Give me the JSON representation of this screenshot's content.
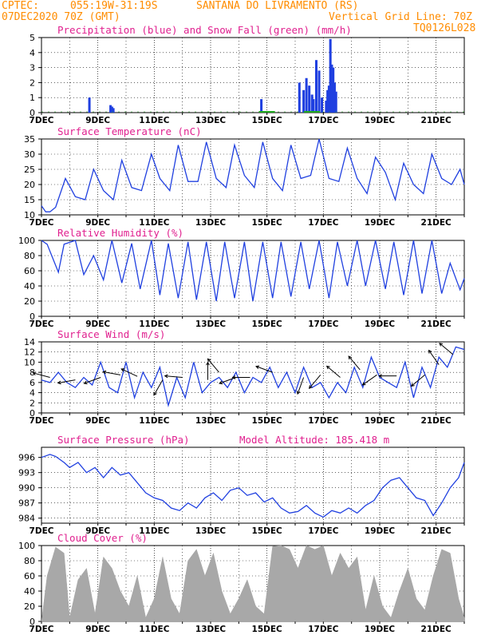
{
  "header": {
    "source": "CPTEC:",
    "coords": "055:19W-31:19S",
    "location": "SANTANA DO LIVRAMENTO (RS)",
    "run": "07DEC2020 70Z (GMT)",
    "grid_note": "Vertical Grid Line: 70Z",
    "code": "TQ0126L028",
    "colors": {
      "orange": "#ff8c00",
      "magenta": "#e0208f",
      "line": "#2040e0",
      "bar": "#1f3fe0",
      "cloud": "#a8a8a8"
    }
  },
  "x_axis": {
    "ticks": [
      "7DEC",
      "9DEC",
      "11DEC",
      "13DEC",
      "15DEC",
      "17DEC",
      "19DEC",
      "21DEC"
    ],
    "tick_days": [
      0,
      2,
      4,
      6,
      8,
      10,
      12,
      14
    ],
    "days": 15
  },
  "chart_data": [
    {
      "id": "precip",
      "type": "bar",
      "title": "Precipitation (blue) and Snow Fall (green) (mm/h)",
      "ylim": [
        0,
        5
      ],
      "yticks": [
        0,
        1,
        2,
        3,
        4,
        5
      ],
      "series": [
        {
          "name": "precipitation",
          "x": [
            1.7,
            2.45,
            2.5,
            2.55,
            7.8,
            9.15,
            9.3,
            9.4,
            9.5,
            9.6,
            9.65,
            9.75,
            9.85,
            9.95,
            10.1,
            10.15,
            10.2,
            10.25,
            10.3,
            10.35,
            10.4,
            10.45
          ],
          "values": [
            1.0,
            0.5,
            0.4,
            0.3,
            0.9,
            2.0,
            1.5,
            2.3,
            1.8,
            1.2,
            0.9,
            3.5,
            2.8,
            1.0,
            0.8,
            1.5,
            1.8,
            4.9,
            3.2,
            3.0,
            2.0,
            1.4
          ]
        },
        {
          "name": "snowfall",
          "x": [
            8.0,
            9.6
          ],
          "values": [
            0.05,
            0.05
          ]
        }
      ]
    },
    {
      "id": "temp",
      "type": "line",
      "title": "Surface Temperature (nC)",
      "ylim": [
        10,
        35
      ],
      "yticks": [
        10,
        15,
        20,
        25,
        30,
        35
      ],
      "x": [
        0,
        0.15,
        0.3,
        0.5,
        0.85,
        1.2,
        1.55,
        1.85,
        2.2,
        2.55,
        2.85,
        3.2,
        3.55,
        3.9,
        4.2,
        4.55,
        4.85,
        5.2,
        5.55,
        5.85,
        6.2,
        6.55,
        6.85,
        7.2,
        7.55,
        7.85,
        8.2,
        8.55,
        8.85,
        9.2,
        9.55,
        9.85,
        10.2,
        10.55,
        10.85,
        11.2,
        11.55,
        11.85,
        12.2,
        12.55,
        12.85,
        13.2,
        13.55,
        13.85,
        14.2,
        14.55,
        14.85,
        15.0
      ],
      "values": [
        13,
        11,
        11,
        12.5,
        22,
        16,
        15,
        25,
        18,
        15,
        28,
        19,
        18,
        30,
        22,
        18,
        33,
        21,
        21,
        34,
        22,
        19,
        33,
        23,
        19,
        34,
        22,
        18,
        33,
        22,
        23,
        35,
        22,
        21,
        32,
        22,
        17,
        29,
        24,
        15,
        27,
        20,
        17,
        30,
        22,
        20,
        25,
        20
      ]
    },
    {
      "id": "rh",
      "type": "line",
      "title": "Relative Humidity (%)",
      "ylim": [
        0,
        100
      ],
      "yticks": [
        0,
        20,
        40,
        60,
        80,
        100
      ],
      "x": [
        0,
        0.2,
        0.6,
        0.8,
        1.2,
        1.5,
        1.85,
        2.2,
        2.5,
        2.85,
        3.2,
        3.5,
        3.9,
        4.2,
        4.5,
        4.85,
        5.2,
        5.5,
        5.85,
        6.2,
        6.5,
        6.85,
        7.2,
        7.5,
        7.85,
        8.2,
        8.5,
        8.85,
        9.2,
        9.5,
        9.85,
        10.2,
        10.5,
        10.85,
        11.2,
        11.5,
        11.85,
        12.2,
        12.5,
        12.85,
        13.2,
        13.5,
        13.85,
        14.2,
        14.5,
        14.85,
        15.0
      ],
      "values": [
        100,
        95,
        58,
        95,
        100,
        55,
        80,
        48,
        100,
        44,
        96,
        36,
        100,
        28,
        96,
        24,
        98,
        22,
        98,
        20,
        98,
        24,
        98,
        20,
        98,
        24,
        98,
        26,
        98,
        36,
        100,
        24,
        98,
        40,
        100,
        40,
        100,
        36,
        98,
        28,
        100,
        30,
        100,
        30,
        70,
        35,
        50
      ]
    },
    {
      "id": "wind",
      "type": "line",
      "title": "Surface Wind (m/s)",
      "ylim": [
        0,
        14
      ],
      "yticks": [
        0,
        2,
        4,
        6,
        8,
        10,
        12,
        14
      ],
      "x": [
        0,
        0.3,
        0.6,
        0.9,
        1.2,
        1.5,
        1.8,
        2.1,
        2.4,
        2.7,
        3.0,
        3.3,
        3.6,
        3.9,
        4.2,
        4.5,
        4.8,
        5.1,
        5.4,
        5.7,
        6.0,
        6.3,
        6.6,
        6.9,
        7.2,
        7.5,
        7.8,
        8.1,
        8.4,
        8.7,
        9.0,
        9.3,
        9.6,
        9.9,
        10.2,
        10.5,
        10.8,
        11.1,
        11.4,
        11.7,
        12.0,
        12.3,
        12.6,
        12.9,
        13.2,
        13.5,
        13.8,
        14.1,
        14.4,
        14.7,
        15.0
      ],
      "values": [
        6.5,
        6,
        8,
        6,
        5,
        7,
        5.5,
        10,
        5,
        4,
        10,
        3,
        8,
        5,
        9,
        1.5,
        7,
        3,
        10,
        4,
        6,
        7,
        5,
        8,
        4,
        7,
        6,
        9,
        5,
        8,
        4,
        9,
        5,
        6,
        3,
        6,
        4,
        9,
        5,
        11,
        7,
        6,
        5,
        10,
        3,
        9,
        5,
        11,
        9,
        13,
        12.5
      ],
      "arrows": [
        {
          "day": 0.3,
          "speed": 7,
          "dir_deg": 165
        },
        {
          "day": 1.2,
          "speed": 6.5,
          "dir_deg": 190
        },
        {
          "day": 2.1,
          "speed": 7,
          "dir_deg": 200
        },
        {
          "day": 2.8,
          "speed": 7.5,
          "dir_deg": 170
        },
        {
          "day": 3.4,
          "speed": 7.2,
          "dir_deg": 155
        },
        {
          "day": 4.3,
          "speed": 6.5,
          "dir_deg": 240
        },
        {
          "day": 5.0,
          "speed": 7,
          "dir_deg": 175
        },
        {
          "day": 5.9,
          "speed": 6.5,
          "dir_deg": 90
        },
        {
          "day": 6.3,
          "speed": 8,
          "dir_deg": 130
        },
        {
          "day": 6.9,
          "speed": 7,
          "dir_deg": 200
        },
        {
          "day": 7.4,
          "speed": 7,
          "dir_deg": 180
        },
        {
          "day": 8.2,
          "speed": 8,
          "dir_deg": 160
        },
        {
          "day": 9.3,
          "speed": 7,
          "dir_deg": 250
        },
        {
          "day": 9.9,
          "speed": 7.5,
          "dir_deg": 230
        },
        {
          "day": 10.6,
          "speed": 7,
          "dir_deg": 140
        },
        {
          "day": 11.3,
          "speed": 8.5,
          "dir_deg": 130
        },
        {
          "day": 11.9,
          "speed": 7.5,
          "dir_deg": 215
        },
        {
          "day": 12.6,
          "speed": 7.3,
          "dir_deg": 180
        },
        {
          "day": 13.6,
          "speed": 7.5,
          "dir_deg": 220
        },
        {
          "day": 14.1,
          "speed": 9.5,
          "dir_deg": 125
        },
        {
          "day": 14.6,
          "speed": 11.5,
          "dir_deg": 140
        }
      ]
    },
    {
      "id": "pres",
      "type": "line",
      "title": "Surface Pressure (hPa)",
      "subtitle": "Model Altitude: 185.418 m",
      "ylim": [
        983,
        998
      ],
      "yticks": [
        984,
        987,
        990,
        993,
        996
      ],
      "x": [
        0,
        0.3,
        0.5,
        0.8,
        1.0,
        1.3,
        1.6,
        1.9,
        2.2,
        2.5,
        2.8,
        3.1,
        3.4,
        3.7,
        4.0,
        4.3,
        4.6,
        4.9,
        5.2,
        5.5,
        5.8,
        6.1,
        6.4,
        6.7,
        7.0,
        7.3,
        7.6,
        7.9,
        8.2,
        8.5,
        8.8,
        9.1,
        9.4,
        9.7,
        10.0,
        10.3,
        10.6,
        10.9,
        11.2,
        11.5,
        11.8,
        12.1,
        12.4,
        12.7,
        13.0,
        13.3,
        13.6,
        13.9,
        14.2,
        14.5,
        14.8,
        15.0
      ],
      "values": [
        996,
        996.6,
        996.2,
        995,
        994,
        995,
        993,
        994,
        992,
        994,
        992.5,
        993,
        991,
        989,
        988,
        987.5,
        986,
        985.5,
        987,
        986,
        988,
        989,
        987.5,
        989.5,
        990,
        988.5,
        989,
        987.2,
        988,
        986,
        985,
        985.3,
        986.5,
        985,
        984.2,
        985.5,
        985,
        986,
        985,
        986.5,
        987.5,
        990,
        991.5,
        992,
        990,
        988,
        987.5,
        984.5,
        987,
        990,
        992,
        995
      ]
    },
    {
      "id": "cloud",
      "type": "area",
      "title": "Cloud Cover (%)",
      "ylim": [
        0,
        100
      ],
      "yticks": [
        0,
        20,
        40,
        60,
        80,
        100
      ],
      "x": [
        0,
        0.2,
        0.5,
        0.8,
        1.0,
        1.3,
        1.6,
        1.9,
        2.2,
        2.5,
        2.8,
        3.1,
        3.4,
        3.7,
        4.0,
        4.3,
        4.6,
        4.9,
        5.2,
        5.5,
        5.8,
        6.1,
        6.4,
        6.7,
        7.0,
        7.3,
        7.6,
        7.9,
        8.2,
        8.5,
        8.8,
        9.1,
        9.4,
        9.7,
        10.0,
        10.3,
        10.6,
        10.9,
        11.2,
        11.5,
        11.8,
        12.1,
        12.4,
        12.7,
        13.0,
        13.3,
        13.6,
        13.9,
        14.2,
        14.5,
        14.8,
        15.0
      ],
      "values": [
        0,
        60,
        98,
        90,
        5,
        55,
        70,
        10,
        85,
        70,
        40,
        20,
        60,
        5,
        30,
        85,
        30,
        10,
        80,
        95,
        60,
        90,
        40,
        10,
        30,
        55,
        20,
        10,
        99,
        100,
        95,
        70,
        100,
        95,
        100,
        60,
        90,
        70,
        85,
        15,
        60,
        20,
        5,
        40,
        70,
        30,
        15,
        60,
        95,
        90,
        30,
        5
      ]
    }
  ]
}
